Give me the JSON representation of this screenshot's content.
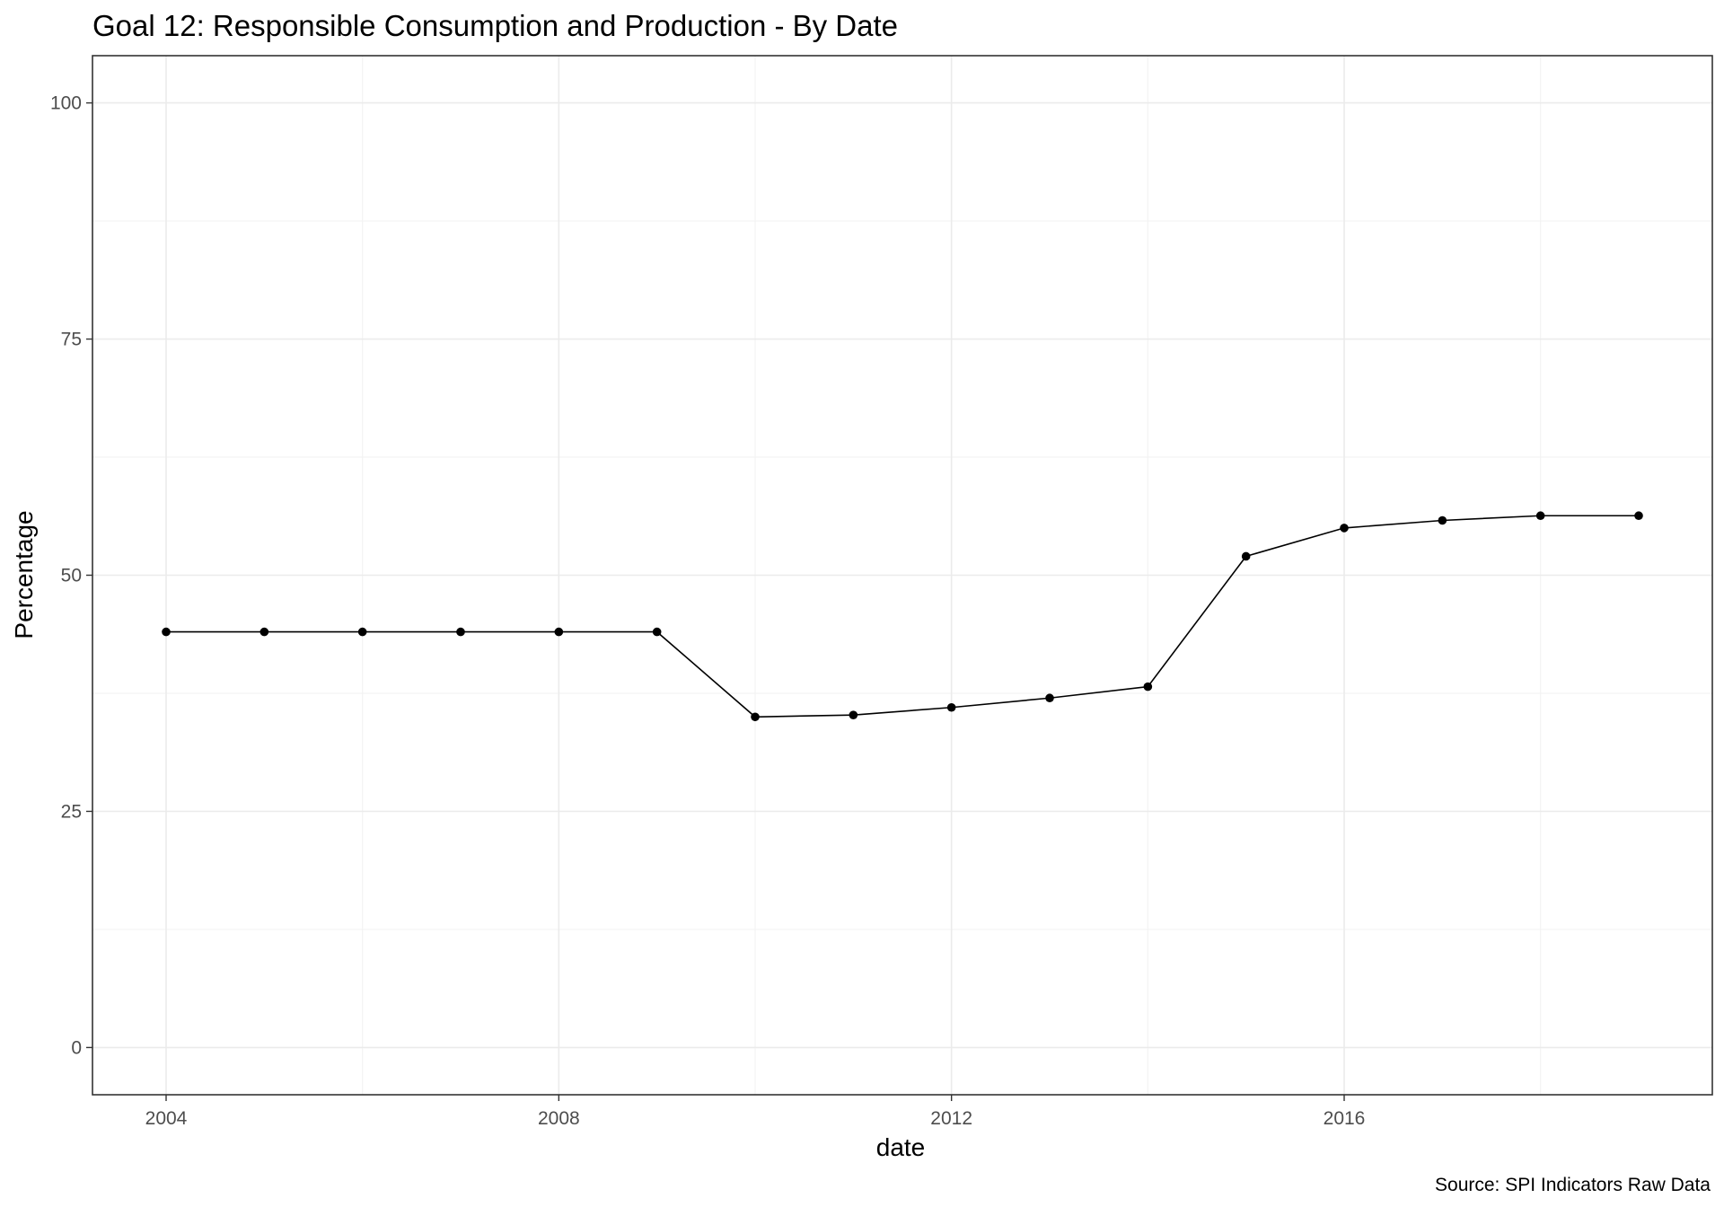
{
  "chart_data": {
    "type": "line",
    "title": "Goal 12: Responsible Consumption and Production - By Date",
    "xlabel": "date",
    "ylabel": "Percentage",
    "caption": "Source: SPI Indicators Raw Data",
    "x_ticks": [
      "2004",
      "2008",
      "2012",
      "2016"
    ],
    "y_ticks": [
      "0",
      "25",
      "50",
      "75",
      "100"
    ],
    "ylim": [
      -5,
      105
    ],
    "xlim": [
      2003.25,
      2019.75
    ],
    "grid": true,
    "series": [
      {
        "x": [
          2004,
          2005,
          2006,
          2007,
          2008,
          2009,
          2010,
          2011,
          2012,
          2013,
          2014,
          2015,
          2016,
          2017,
          2018,
          2019
        ],
        "values": [
          44,
          44,
          44,
          44,
          44,
          44,
          35,
          35.2,
          36,
          37,
          38.2,
          52,
          55,
          55.8,
          56.3,
          56.3
        ]
      }
    ]
  }
}
